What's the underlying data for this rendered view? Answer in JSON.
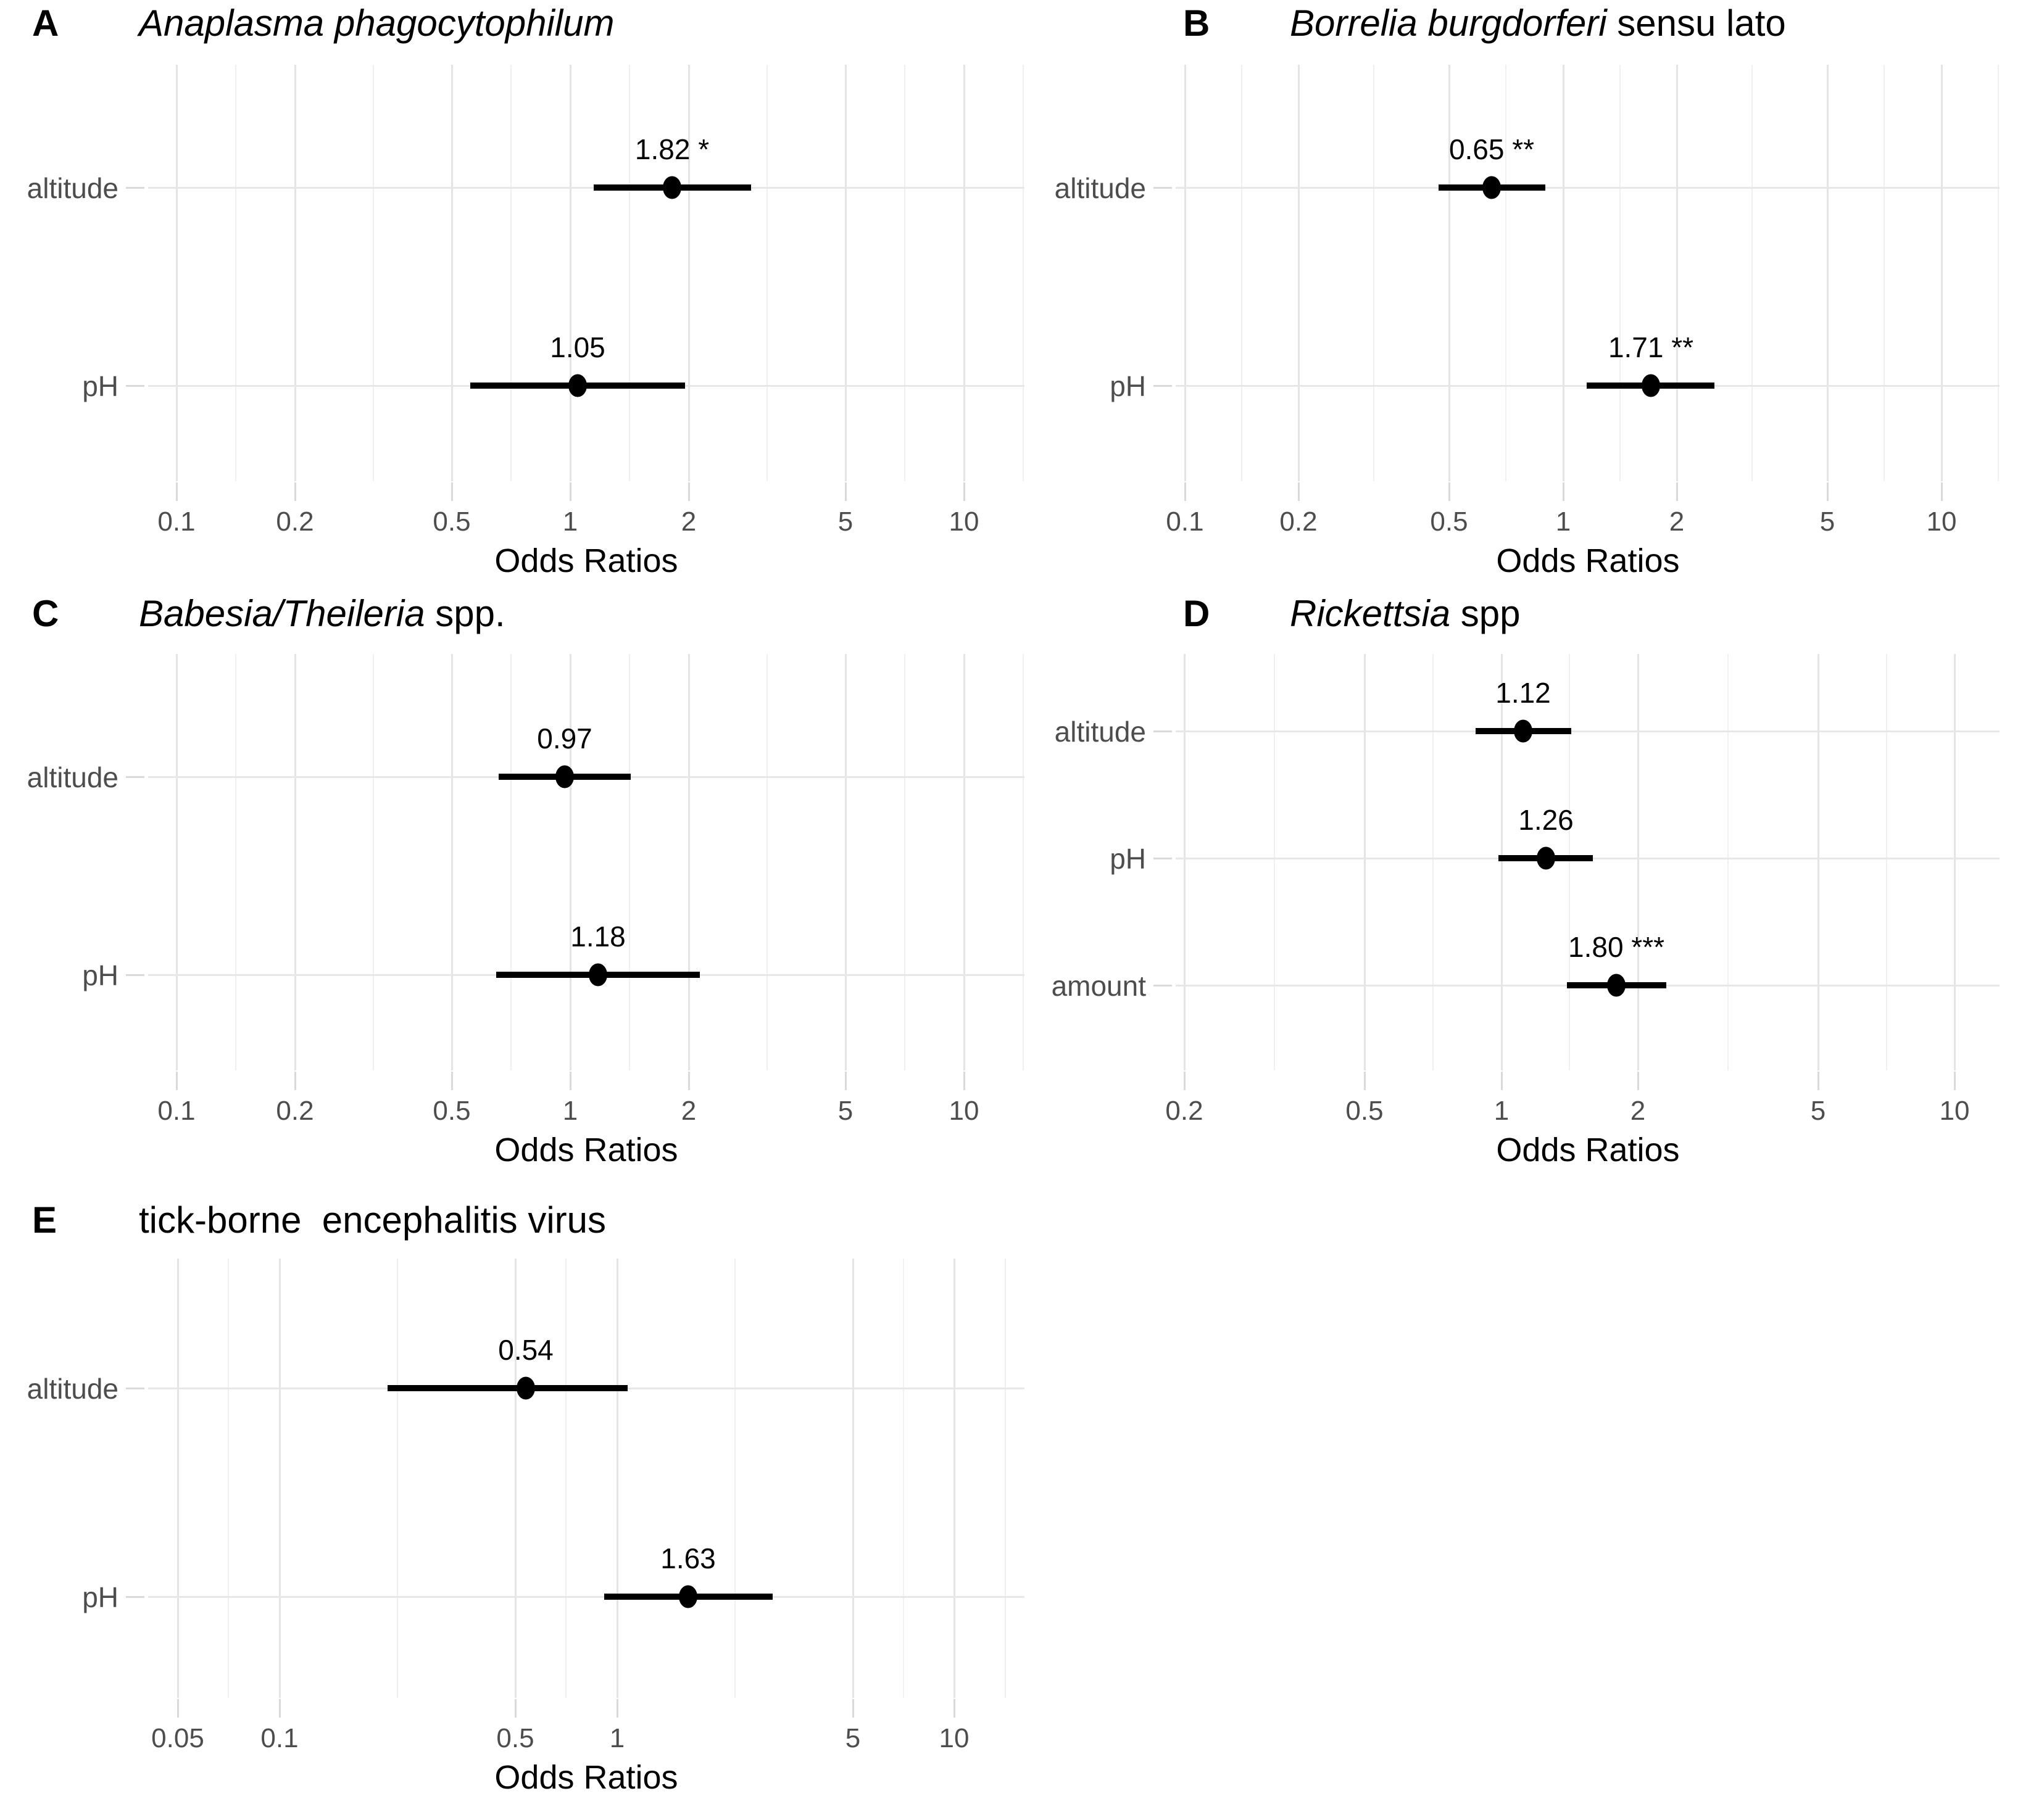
{
  "figure": {
    "background": "#ffffff",
    "axis_label": "Odds Ratios",
    "title_color": "#000000",
    "muted_text_color": "#4d4d4d",
    "grid_color_major": "#e4e4e4",
    "grid_color_minor": "#efefef",
    "point_color": "#000000"
  },
  "chart_data": [
    {
      "id": "A",
      "type": "scatter",
      "variant": "forest-plot",
      "panel_label": "A",
      "title": "Anaplasma phagocytophilum",
      "title_segments": [
        {
          "text": "Anaplasma phagocytophilum",
          "italic": true
        }
      ],
      "xlabel": "Odds Ratios",
      "x_scale": "log10",
      "x_ticks": [
        0.1,
        0.2,
        0.5,
        1,
        2,
        5,
        10
      ],
      "x_tick_labels": [
        "0.1",
        "0.2",
        "0.5",
        "1",
        "2",
        "5",
        "10"
      ],
      "x_domain": [
        0.085,
        14.3
      ],
      "grid": true,
      "categories": [
        "altitude",
        "pH"
      ],
      "points": [
        {
          "label": "altitude",
          "or": 1.82,
          "ci_low": 1.15,
          "ci_high": 2.89,
          "annotation": "1.82 *"
        },
        {
          "label": "pH",
          "or": 1.05,
          "ci_low": 0.56,
          "ci_high": 1.97,
          "annotation": "1.05"
        }
      ]
    },
    {
      "id": "B",
      "type": "scatter",
      "variant": "forest-plot",
      "panel_label": "B",
      "title": "Borrelia burgdorferi sensu lato",
      "title_segments": [
        {
          "text": "Borrelia burgdorferi",
          "italic": true
        },
        {
          "text": " sensu lato",
          "italic": false
        }
      ],
      "xlabel": "Odds Ratios",
      "x_scale": "log10",
      "x_ticks": [
        0.1,
        0.2,
        0.5,
        1,
        2,
        5,
        10
      ],
      "x_tick_labels": [
        "0.1",
        "0.2",
        "0.5",
        "1",
        "2",
        "5",
        "10"
      ],
      "x_domain": [
        0.095,
        14.3
      ],
      "grid": true,
      "categories": [
        "altitude",
        "pH"
      ],
      "points": [
        {
          "label": "altitude",
          "or": 0.65,
          "ci_low": 0.47,
          "ci_high": 0.9,
          "annotation": "0.65 **"
        },
        {
          "label": "pH",
          "or": 1.71,
          "ci_low": 1.16,
          "ci_high": 2.52,
          "annotation": "1.71 **"
        }
      ]
    },
    {
      "id": "C",
      "type": "scatter",
      "variant": "forest-plot",
      "panel_label": "C",
      "title": "Babesia/Theileria spp.",
      "title_segments": [
        {
          "text": "Babesia/Theileria",
          "italic": true
        },
        {
          "text": " spp.",
          "italic": false
        }
      ],
      "xlabel": "Odds Ratios",
      "x_scale": "log10",
      "x_ticks": [
        0.1,
        0.2,
        0.5,
        1,
        2,
        5,
        10
      ],
      "x_tick_labels": [
        "0.1",
        "0.2",
        "0.5",
        "1",
        "2",
        "5",
        "10"
      ],
      "x_domain": [
        0.085,
        14.3
      ],
      "grid": true,
      "categories": [
        "altitude",
        "pH"
      ],
      "points": [
        {
          "label": "altitude",
          "or": 0.97,
          "ci_low": 0.66,
          "ci_high": 1.43,
          "annotation": "0.97"
        },
        {
          "label": "pH",
          "or": 1.18,
          "ci_low": 0.65,
          "ci_high": 2.14,
          "annotation": "1.18"
        }
      ]
    },
    {
      "id": "D",
      "type": "scatter",
      "variant": "forest-plot",
      "panel_label": "D",
      "title": "Rickettsia spp",
      "title_segments": [
        {
          "text": "Rickettsia",
          "italic": true
        },
        {
          "text": " spp",
          "italic": false
        }
      ],
      "xlabel": "Odds Ratios",
      "x_scale": "log10",
      "x_ticks": [
        0.2,
        0.5,
        1,
        2,
        5,
        10
      ],
      "x_tick_labels": [
        "0.2",
        "0.5",
        "1",
        "2",
        "5",
        "10"
      ],
      "x_domain": [
        0.192,
        12.6
      ],
      "grid": true,
      "categories": [
        "altitude",
        "pH",
        "amount"
      ],
      "points": [
        {
          "label": "altitude",
          "or": 1.12,
          "ci_low": 0.88,
          "ci_high": 1.43,
          "annotation": "1.12"
        },
        {
          "label": "pH",
          "or": 1.26,
          "ci_low": 0.99,
          "ci_high": 1.6,
          "annotation": "1.26"
        },
        {
          "label": "amount",
          "or": 1.8,
          "ci_low": 1.4,
          "ci_high": 2.32,
          "annotation": "1.80 ***"
        }
      ]
    },
    {
      "id": "E",
      "type": "scatter",
      "variant": "forest-plot",
      "panel_label": "E",
      "title": "tick-borne  encephalitis virus",
      "title_segments": [
        {
          "text": "tick-borne  encephalitis virus",
          "italic": false
        }
      ],
      "xlabel": "Odds Ratios",
      "x_scale": "log10",
      "x_ticks": [
        0.05,
        0.1,
        0.5,
        1,
        5,
        10
      ],
      "x_tick_labels": [
        "0.05",
        "0.1",
        "0.5",
        "1",
        "5",
        "10"
      ],
      "x_domain": [
        0.041,
        16.2
      ],
      "grid": true,
      "categories": [
        "altitude",
        "pH"
      ],
      "points": [
        {
          "label": "altitude",
          "or": 0.54,
          "ci_low": 0.21,
          "ci_high": 1.08,
          "annotation": "0.54"
        },
        {
          "label": "pH",
          "or": 1.63,
          "ci_low": 0.92,
          "ci_high": 2.9,
          "annotation": "1.63"
        }
      ]
    }
  ]
}
